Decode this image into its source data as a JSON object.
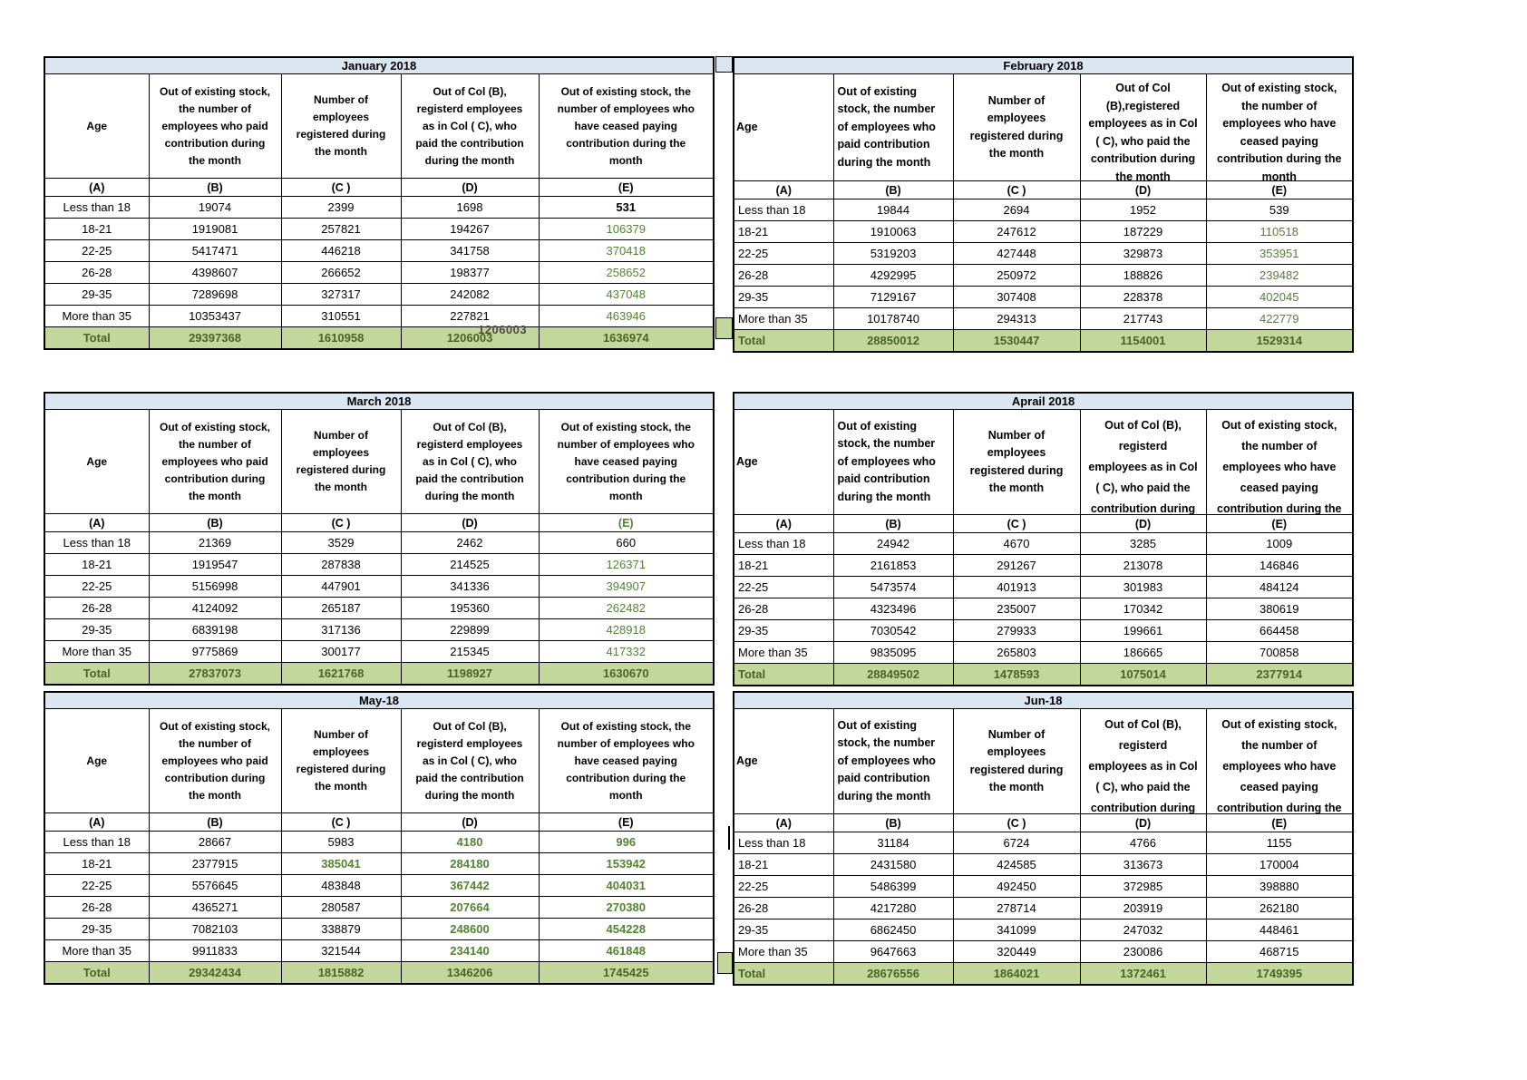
{
  "colors": {
    "title_bg": "#dce6f1",
    "total_bg": "#c3d69b",
    "green_value": "#548235",
    "total_text": "#4a6522"
  },
  "column_letters": [
    "(A)",
    "(B)",
    "(C )",
    "(D)",
    "(E)"
  ],
  "artifacts": {
    "stray_value": "1206003"
  },
  "tables": [
    {
      "title": "January 2018",
      "headers": {
        "age": "Age",
        "b": "Out of existing stock,\nthe number of\nemployees who paid\ncontribution during\nthe month",
        "c": "Number of\nemployees\nregistered during\nthe month",
        "d": "Out of Col (B),\nregisterd employees\nas in Col ( C), who\npaid the contribution\nduring the month",
        "e": "Out of existing stock, the\nnumber of  employees  who\nhave ceased paying\ncontribution during the\nmonth"
      },
      "rows": [
        {
          "age": "Less than 18",
          "b": "19074",
          "c": "2399",
          "d": "1698",
          "e": "531",
          "styles": {
            "e": "kb"
          }
        },
        {
          "age": "18-21",
          "b": "1919081",
          "c": "257821",
          "d": "194267",
          "e": "106379",
          "styles": {
            "e": "g"
          }
        },
        {
          "age": "22-25",
          "b": "5417471",
          "c": "446218",
          "d": "341758",
          "e": "370418",
          "styles": {
            "e": "g"
          }
        },
        {
          "age": "26-28",
          "b": "4398607",
          "c": "266652",
          "d": "198377",
          "e": "258652",
          "styles": {
            "e": "g"
          }
        },
        {
          "age": "29-35",
          "b": "7289698",
          "c": "327317",
          "d": "242082",
          "e": "437048",
          "styles": {
            "e": "g"
          }
        },
        {
          "age": "More than 35",
          "b": "10353437",
          "c": "310551",
          "d": "227821",
          "e": "463946",
          "styles": {
            "e": "g"
          }
        }
      ],
      "total": {
        "label": "Total",
        "b": "29397368",
        "c": "1610958",
        "d": "1206003",
        "e": "1636974"
      }
    },
    {
      "title": "February 2018",
      "headers": {
        "age": "Age",
        "b": "Out of existing\nstock, the number\nof employees who\npaid contribution\nduring the month",
        "c": "Number of\nemployees\nregistered during\nthe month",
        "d": "Out of Col\n(B),registered\nemployees as in Col\n( C), who paid the\ncontribution during\nthe month",
        "e": "Out of existing stock,\nthe number of\nemployees  who have\nceased paying\ncontribution during the\nmonth"
      },
      "rows": [
        {
          "age": "Less than 18",
          "b": "19844",
          "c": "2694",
          "d": "1952",
          "e": "539",
          "styles": {}
        },
        {
          "age": "18-21",
          "b": "1910063",
          "c": "247612",
          "d": "187229",
          "e": "110518",
          "styles": {
            "e": "g"
          }
        },
        {
          "age": "22-25",
          "b": "5319203",
          "c": "427448",
          "d": "329873",
          "e": "353951",
          "styles": {
            "e": "g"
          }
        },
        {
          "age": "26-28",
          "b": "4292995",
          "c": "250972",
          "d": "188826",
          "e": "239482",
          "styles": {
            "e": "g"
          }
        },
        {
          "age": "29-35",
          "b": "7129167",
          "c": "307408",
          "d": "228378",
          "e": "402045",
          "styles": {
            "e": "g"
          }
        },
        {
          "age": "More than 35",
          "b": "10178740",
          "c": "294313",
          "d": "217743",
          "e": "422779",
          "styles": {
            "e": "g"
          }
        }
      ],
      "total": {
        "label": "Total",
        "b": "28850012",
        "c": "1530447",
        "d": "1154001",
        "e": "1529314"
      }
    },
    {
      "title": "March 2018",
      "letter_e_style": "g",
      "headers": {
        "age": "Age",
        "b": "Out of existing stock,\nthe number of\nemployees who paid\ncontribution during\nthe month",
        "c": "Number of\nemployees\nregistered during\nthe month",
        "d": "Out of Col (B),\nregisterd employees\nas in Col ( C), who\npaid the contribution\nduring the month",
        "e": "Out of existing stock, the\nnumber of  employees  who\nhave ceased paying\ncontribution during the\nmonth"
      },
      "rows": [
        {
          "age": "Less than 18",
          "b": "21369",
          "c": "3529",
          "d": "2462",
          "e": "660",
          "styles": {}
        },
        {
          "age": "18-21",
          "b": "1919547",
          "c": "287838",
          "d": "214525",
          "e": "126371",
          "styles": {
            "e": "g"
          }
        },
        {
          "age": "22-25",
          "b": "5156998",
          "c": "447901",
          "d": "341336",
          "e": "394907",
          "styles": {
            "e": "g"
          }
        },
        {
          "age": "26-28",
          "b": "4124092",
          "c": "265187",
          "d": "195360",
          "e": "262482",
          "styles": {
            "e": "g"
          }
        },
        {
          "age": "29-35",
          "b": "6839198",
          "c": "317136",
          "d": "229899",
          "e": "428918",
          "styles": {
            "e": "g"
          }
        },
        {
          "age": "More than 35",
          "b": "9775869",
          "c": "300177",
          "d": "215345",
          "e": "417332",
          "styles": {
            "e": "g"
          }
        }
      ],
      "total": {
        "label": "Total",
        "b": "27837073",
        "c": "1621768",
        "d": "1198927",
        "e": "1630670"
      }
    },
    {
      "title": "Aprail 2018",
      "headers": {
        "age": "Age",
        "b": "Out of existing\nstock, the number\nof employees who\npaid contribution\nduring the month",
        "c": "Number of\nemployees\nregistered during\nthe month",
        "d": "Out of Col (B),\nregisterd\nemployees as in Col\n( C), who paid the\ncontribution during",
        "e": "Out of existing stock,\nthe number of\nemployees  who have\nceased paying\ncontribution during the"
      },
      "rows": [
        {
          "age": "Less than 18",
          "b": "24942",
          "c": "4670",
          "d": "3285",
          "e": "1009",
          "styles": {}
        },
        {
          "age": "18-21",
          "b": "2161853",
          "c": "291267",
          "d": "213078",
          "e": "146846",
          "styles": {}
        },
        {
          "age": "22-25",
          "b": "5473574",
          "c": "401913",
          "d": "301983",
          "e": "484124",
          "styles": {}
        },
        {
          "age": "26-28",
          "b": "4323496",
          "c": "235007",
          "d": "170342",
          "e": "380619",
          "styles": {}
        },
        {
          "age": "29-35",
          "b": "7030542",
          "c": "279933",
          "d": "199661",
          "e": "664458",
          "styles": {}
        },
        {
          "age": "More than 35",
          "b": "9835095",
          "c": "265803",
          "d": "186665",
          "e": "700858",
          "styles": {}
        }
      ],
      "total": {
        "label": "Total",
        "b": "28849502",
        "c": "1478593",
        "d": "1075014",
        "e": "2377914"
      }
    },
    {
      "title": "May-18",
      "headers": {
        "age": "Age",
        "b": "Out of existing stock,\nthe number of\nemployees who paid\ncontribution during\nthe month",
        "c": "Number of\nemployees\nregistered during\nthe month",
        "d": "Out of Col (B),\nregisterd employees\nas in Col ( C), who\npaid the contribution\nduring the month",
        "e": "Out of existing stock, the\nnumber of  employees  who\nhave ceased paying\ncontribution during the\nmonth"
      },
      "rows": [
        {
          "age": "Less than 18",
          "b": "28667",
          "c": "5983",
          "d": "4180",
          "e": "996",
          "styles": {
            "d": "gb",
            "e": "gb"
          }
        },
        {
          "age": "18-21",
          "b": "2377915",
          "c": "385041",
          "d": "284180",
          "e": "153942",
          "styles": {
            "c": "gb",
            "d": "gb",
            "e": "gb"
          }
        },
        {
          "age": "22-25",
          "b": "5576645",
          "c": "483848",
          "d": "367442",
          "e": "404031",
          "styles": {
            "d": "gb",
            "e": "gb"
          }
        },
        {
          "age": "26-28",
          "b": "4365271",
          "c": "280587",
          "d": "207664",
          "e": "270380",
          "styles": {
            "d": "gb",
            "e": "gb"
          }
        },
        {
          "age": "29-35",
          "b": "7082103",
          "c": "338879",
          "d": "248600",
          "e": "454228",
          "styles": {
            "d": "gb",
            "e": "gb"
          }
        },
        {
          "age": "More than 35",
          "b": "9911833",
          "c": "321544",
          "d": "234140",
          "e": "461848",
          "styles": {
            "d": "gb",
            "e": "gb"
          }
        }
      ],
      "total": {
        "label": "Total",
        "b": "29342434",
        "c": "1815882",
        "d": "1346206",
        "e": "1745425"
      }
    },
    {
      "title": "Jun-18",
      "headers": {
        "age": "Age",
        "b": "Out of existing\nstock, the number\nof employees who\npaid contribution\nduring the month",
        "c": "Number of\nemployees\nregistered during\nthe month",
        "d": "Out of Col (B),\nregisterd\nemployees as in Col\n( C), who paid the\ncontribution during",
        "e": "Out of existing stock,\nthe number of\nemployees  who have\nceased paying\ncontribution during the"
      },
      "rows": [
        {
          "age": "Less than 18",
          "b": "31184",
          "c": "6724",
          "d": "4766",
          "e": "1155",
          "styles": {}
        },
        {
          "age": "18-21",
          "b": "2431580",
          "c": "424585",
          "d": "313673",
          "e": "170004",
          "styles": {}
        },
        {
          "age": "22-25",
          "b": "5486399",
          "c": "492450",
          "d": "372985",
          "e": "398880",
          "styles": {}
        },
        {
          "age": "26-28",
          "b": "4217280",
          "c": "278714",
          "d": "203919",
          "e": "262180",
          "styles": {}
        },
        {
          "age": "29-35",
          "b": "6862450",
          "c": "341099",
          "d": "247032",
          "e": "448461",
          "styles": {}
        },
        {
          "age": "More than 35",
          "b": "9647663",
          "c": "320449",
          "d": "230086",
          "e": "468715",
          "styles": {}
        }
      ],
      "total": {
        "label": "Total",
        "b": "28676556",
        "c": "1864021",
        "d": "1372461",
        "e": "1749395"
      }
    }
  ]
}
